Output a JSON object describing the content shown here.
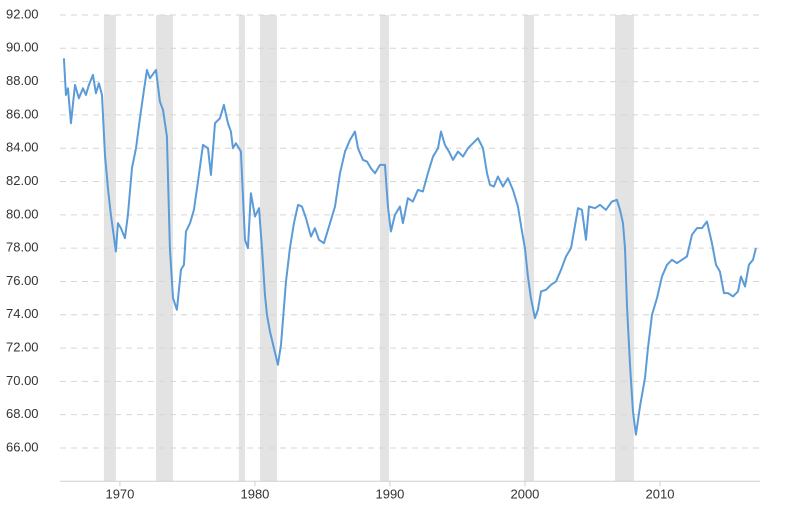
{
  "chart_data": {
    "type": "line",
    "color": "#5b9bd8",
    "grid": true,
    "xlim": [
      1965.56,
      2017.41
    ],
    "xticks": [
      1970,
      1980,
      1990,
      2000,
      2010
    ],
    "ylim": [
      64,
      92
    ],
    "yticks": [
      {
        "value": 66,
        "label": "66.00"
      },
      {
        "value": 68,
        "label": "68.00"
      },
      {
        "value": 70,
        "label": "70.00"
      },
      {
        "value": 72,
        "label": "72.00"
      },
      {
        "value": 74,
        "label": "74.00"
      },
      {
        "value": 76,
        "label": "76.00"
      },
      {
        "value": 78,
        "label": "78.00"
      },
      {
        "value": 80,
        "label": "80.00"
      },
      {
        "value": 82,
        "label": "82.00"
      },
      {
        "value": 84,
        "label": "84.00"
      },
      {
        "value": 86,
        "label": "86.00"
      },
      {
        "value": 88,
        "label": "88.00"
      },
      {
        "value": 90,
        "label": "90.00"
      },
      {
        "value": 92,
        "label": "92.00"
      }
    ],
    "recessions": [
      [
        1968.81,
        1969.7
      ],
      [
        1972.67,
        1973.93
      ],
      [
        1978.81,
        1979.26
      ],
      [
        1980.37,
        1981.63
      ],
      [
        1989.26,
        1989.93
      ],
      [
        1999.93,
        2000.67
      ],
      [
        2006.67,
        2008.07
      ]
    ],
    "recession_color": "#e3e3e3",
    "x": [
      1965.85,
      1966.0,
      1966.15,
      1966.37,
      1966.67,
      1966.96,
      1967.26,
      1967.48,
      1967.7,
      1968.0,
      1968.22,
      1968.44,
      1968.67,
      1968.89,
      1969.11,
      1969.33,
      1969.7,
      1969.85,
      1970.07,
      1970.37,
      1970.59,
      1970.89,
      1971.19,
      1971.48,
      1971.78,
      1972.0,
      1972.22,
      1972.67,
      1972.96,
      1973.19,
      1973.48,
      1973.7,
      1973.93,
      1974.22,
      1974.52,
      1974.74,
      1974.89,
      1975.19,
      1975.48,
      1975.78,
      1976.15,
      1976.52,
      1976.74,
      1977.04,
      1977.41,
      1977.7,
      1978.0,
      1978.22,
      1978.37,
      1978.59,
      1978.96,
      1979.26,
      1979.48,
      1979.7,
      1980.0,
      1980.3,
      1980.52,
      1980.74,
      1980.89,
      1981.11,
      1981.7,
      1981.93,
      1982.3,
      1982.59,
      1982.89,
      1983.19,
      1983.48,
      1983.78,
      1984.15,
      1984.44,
      1984.74,
      1985.11,
      1985.56,
      1985.93,
      1986.3,
      1986.67,
      1987.04,
      1987.41,
      1987.63,
      1988.0,
      1988.3,
      1988.59,
      1988.89,
      1989.26,
      1989.63,
      1989.85,
      1990.07,
      1990.37,
      1990.74,
      1990.96,
      1991.33,
      1991.7,
      1992.07,
      1992.44,
      1992.81,
      1993.19,
      1993.56,
      1993.78,
      1994.07,
      1994.37,
      1994.67,
      1995.04,
      1995.41,
      1995.78,
      1996.52,
      1996.89,
      1997.19,
      1997.41,
      1997.7,
      1998.0,
      1998.37,
      1998.74,
      1999.11,
      1999.48,
      1999.78,
      2000.0,
      2000.22,
      2000.44,
      2000.74,
      2000.96,
      2001.19,
      2001.56,
      2001.93,
      2002.3,
      2002.67,
      2003.04,
      2003.41,
      2003.63,
      2003.93,
      2004.22,
      2004.52,
      2004.74,
      2005.19,
      2005.56,
      2006.0,
      2006.44,
      2006.81,
      2007.04,
      2007.26,
      2007.41,
      2007.56,
      2007.78,
      2008.0,
      2008.22,
      2008.52,
      2008.89,
      2009.11,
      2009.41,
      2009.78,
      2010.15,
      2010.52,
      2010.89,
      2011.26,
      2011.63,
      2012.0,
      2012.37,
      2012.74,
      2013.11,
      2013.48,
      2013.85,
      2014.15,
      2014.44,
      2014.74,
      2015.04,
      2015.41,
      2015.78,
      2016.0,
      2016.3,
      2016.59,
      2016.89,
      2017.11
    ],
    "values": [
      89.4,
      87.2,
      87.6,
      85.5,
      87.8,
      87.0,
      87.6,
      87.2,
      87.8,
      88.4,
      87.3,
      87.9,
      87.2,
      83.6,
      81.6,
      80.0,
      77.8,
      79.5,
      79.2,
      78.6,
      80.0,
      82.8,
      84.0,
      85.8,
      87.5,
      88.7,
      88.2,
      88.7,
      86.8,
      86.3,
      84.7,
      78.0,
      75.0,
      74.3,
      76.7,
      77.0,
      79.0,
      79.5,
      80.3,
      82.0,
      84.2,
      84.0,
      82.4,
      85.5,
      85.8,
      86.6,
      85.5,
      85.0,
      84.0,
      84.3,
      83.8,
      78.5,
      78.0,
      81.3,
      79.9,
      80.4,
      78.0,
      75.2,
      74.0,
      73.0,
      71.0,
      72.2,
      76.0,
      78.0,
      79.5,
      80.6,
      80.5,
      79.8,
      78.7,
      79.2,
      78.5,
      78.3,
      79.5,
      80.5,
      82.5,
      83.8,
      84.5,
      85.0,
      84.0,
      83.3,
      83.2,
      82.8,
      82.5,
      83.0,
      83.0,
      80.5,
      79.0,
      80.0,
      80.5,
      79.5,
      81.0,
      80.8,
      81.5,
      81.4,
      82.5,
      83.5,
      84.0,
      85.0,
      84.2,
      83.8,
      83.3,
      83.8,
      83.5,
      84.0,
      84.6,
      84.0,
      82.5,
      81.8,
      81.7,
      82.3,
      81.7,
      82.2,
      81.5,
      80.5,
      79.0,
      78.0,
      76.3,
      75.0,
      73.8,
      74.3,
      75.4,
      75.5,
      75.8,
      76.0,
      76.7,
      77.5,
      78.0,
      79.0,
      80.4,
      80.3,
      78.5,
      80.5,
      80.4,
      80.6,
      80.3,
      80.8,
      80.9,
      80.3,
      79.5,
      78.0,
      74.5,
      71.0,
      68.2,
      66.8,
      68.5,
      70.2,
      72.0,
      74.0,
      75.0,
      76.3,
      77.0,
      77.3,
      77.1,
      77.3,
      77.5,
      78.8,
      79.2,
      79.2,
      79.6,
      78.3,
      77.0,
      76.6,
      75.3,
      75.3,
      75.1,
      75.4,
      76.3,
      75.7,
      77.0,
      77.3,
      78.0
    ]
  }
}
